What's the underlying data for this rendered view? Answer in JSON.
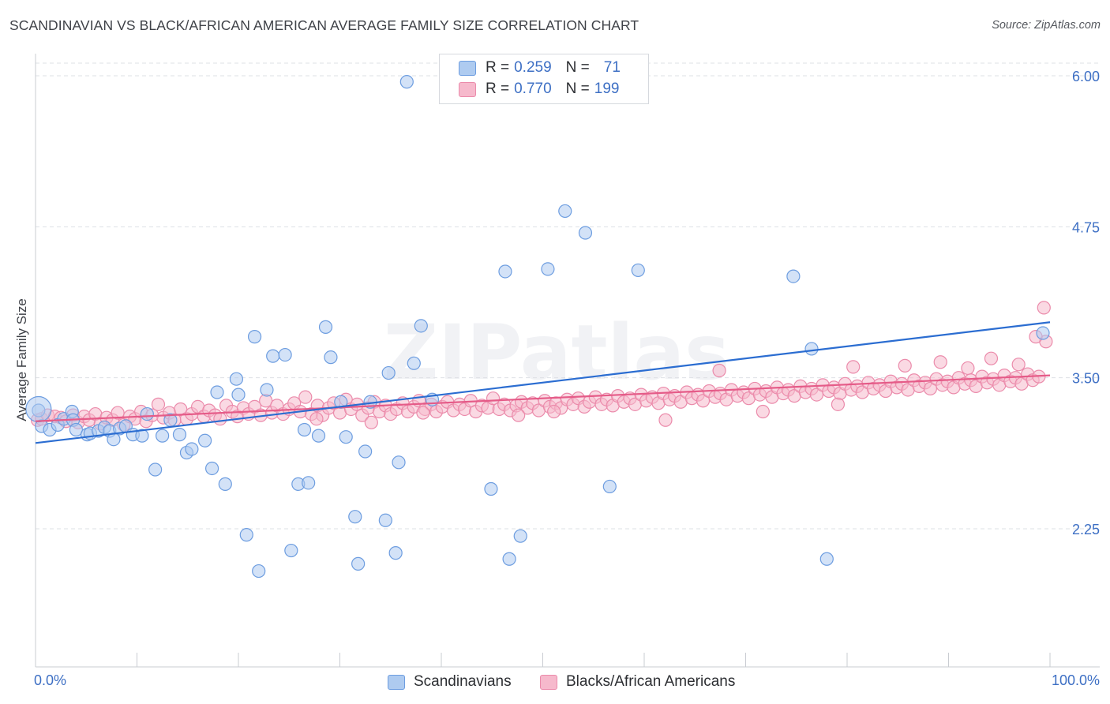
{
  "title": "SCANDINAVIAN VS BLACK/AFRICAN AMERICAN AVERAGE FAMILY SIZE CORRELATION CHART",
  "source": "Source: ZipAtlas.com",
  "watermark": "ZIPatlas",
  "legend": {
    "rows": [
      {
        "r_label": "R =",
        "r_value": "0.259",
        "n_label": "N =",
        "n_value": "71"
      },
      {
        "r_label": "R =",
        "r_value": "0.770",
        "n_label": "N =",
        "n_value": "199"
      }
    ]
  },
  "colors": {
    "blue_fill": "#aecbf0",
    "blue_stroke": "#6d9de0",
    "blue_line": "#2b6dd1",
    "pink_fill": "#f6b9cc",
    "pink_stroke": "#eb8bab",
    "pink_line": "#e55b88",
    "axis_text": "#3d6fc4",
    "grid": "#dde0e5"
  },
  "chart_data": {
    "type": "scatter",
    "title": "SCANDINAVIAN VS BLACK/AFRICAN AMERICAN AVERAGE FAMILY SIZE CORRELATION CHART",
    "xlabel": "",
    "ylabel": "Average Family Size",
    "xlim": [
      0,
      100
    ],
    "ylim": [
      1.0,
      6.1
    ],
    "x_tick_labels": [
      "0.0%",
      "100.0%"
    ],
    "y_ticks": [
      2.25,
      3.5,
      4.75,
      6.0
    ],
    "y_tick_labels": [
      "2.25",
      "3.50",
      "4.75",
      "6.00"
    ],
    "grid": true,
    "legend_position": "top-center",
    "series": [
      {
        "name": "Scandinavians",
        "r": 0.259,
        "n": 71,
        "trend": {
          "x0": 0,
          "y0": 2.96,
          "x1": 100,
          "y1": 3.96
        },
        "points": [
          [
            0.3,
            3.23
          ],
          [
            0.6,
            3.1
          ],
          [
            1.4,
            3.07
          ],
          [
            2.2,
            3.11
          ],
          [
            2.8,
            3.16
          ],
          [
            3.6,
            3.22
          ],
          [
            3.7,
            3.15
          ],
          [
            4,
            3.07
          ],
          [
            5.1,
            3.03
          ],
          [
            5.4,
            3.04
          ],
          [
            6.2,
            3.06
          ],
          [
            6.8,
            3.09
          ],
          [
            7.3,
            3.06
          ],
          [
            7.7,
            2.99
          ],
          [
            8.3,
            3.08
          ],
          [
            8.9,
            3.1
          ],
          [
            9.6,
            3.03
          ],
          [
            10.5,
            3.02
          ],
          [
            11,
            3.2
          ],
          [
            11.8,
            2.74
          ],
          [
            12.5,
            3.02
          ],
          [
            13.3,
            3.15
          ],
          [
            14.2,
            3.03
          ],
          [
            14.9,
            2.88
          ],
          [
            15.4,
            2.91
          ],
          [
            16.7,
            2.98
          ],
          [
            17.4,
            2.75
          ],
          [
            17.9,
            3.38
          ],
          [
            18.7,
            2.62
          ],
          [
            19.8,
            3.49
          ],
          [
            20,
            3.36
          ],
          [
            20.8,
            2.2
          ],
          [
            21.6,
            3.84
          ],
          [
            22,
            1.9
          ],
          [
            22.8,
            3.4
          ],
          [
            23.4,
            3.68
          ],
          [
            24.6,
            3.69
          ],
          [
            25.2,
            2.07
          ],
          [
            25.9,
            2.62
          ],
          [
            26.5,
            3.07
          ],
          [
            26.9,
            2.63
          ],
          [
            27.9,
            3.02
          ],
          [
            28.6,
            3.92
          ],
          [
            29.1,
            3.67
          ],
          [
            30.1,
            3.3
          ],
          [
            30.6,
            3.01
          ],
          [
            31.5,
            2.35
          ],
          [
            31.8,
            1.96
          ],
          [
            32.5,
            2.89
          ],
          [
            33,
            3.3
          ],
          [
            34.5,
            2.32
          ],
          [
            34.8,
            3.54
          ],
          [
            35.5,
            2.05
          ],
          [
            35.8,
            2.8
          ],
          [
            36.6,
            5.95
          ],
          [
            37.3,
            3.62
          ],
          [
            38,
            3.93
          ],
          [
            39.1,
            3.32
          ],
          [
            44.9,
            2.58
          ],
          [
            46.3,
            4.38
          ],
          [
            46.7,
            2.0
          ],
          [
            47.8,
            2.19
          ],
          [
            50.5,
            4.4
          ],
          [
            52.2,
            4.88
          ],
          [
            54.2,
            4.7
          ],
          [
            56.6,
            2.6
          ],
          [
            59.4,
            4.39
          ],
          [
            74.7,
            4.34
          ],
          [
            76.5,
            3.74
          ],
          [
            78,
            2.0
          ],
          [
            99.3,
            3.87
          ]
        ]
      },
      {
        "name": "Blacks/African Americans",
        "r": 0.77,
        "n": 199,
        "trend": {
          "x0": 0,
          "y0": 3.14,
          "x1": 100,
          "y1": 3.52
        },
        "points": [
          [
            0.2,
            3.15
          ],
          [
            0.6,
            3.16
          ],
          [
            1.2,
            3.19
          ],
          [
            1.9,
            3.18
          ],
          [
            2.5,
            3.17
          ],
          [
            3,
            3.14
          ],
          [
            3.7,
            3.19
          ],
          [
            4.2,
            3.13
          ],
          [
            4.8,
            3.18
          ],
          [
            5.3,
            3.15
          ],
          [
            5.9,
            3.2
          ],
          [
            6.4,
            3.12
          ],
          [
            7,
            3.17
          ],
          [
            7.6,
            3.15
          ],
          [
            8.1,
            3.21
          ],
          [
            8.7,
            3.11
          ],
          [
            9.3,
            3.18
          ],
          [
            9.8,
            3.16
          ],
          [
            10.4,
            3.22
          ],
          [
            10.9,
            3.14
          ],
          [
            11.5,
            3.19
          ],
          [
            12.1,
            3.28
          ],
          [
            12.6,
            3.17
          ],
          [
            13.2,
            3.21
          ],
          [
            13.7,
            3.15
          ],
          [
            14.3,
            3.24
          ],
          [
            14.9,
            3.16
          ],
          [
            15.4,
            3.2
          ],
          [
            16,
            3.26
          ],
          [
            16.6,
            3.18
          ],
          [
            17.1,
            3.23
          ],
          [
            17.7,
            3.19
          ],
          [
            18.2,
            3.16
          ],
          [
            18.8,
            3.27
          ],
          [
            19.4,
            3.22
          ],
          [
            19.9,
            3.18
          ],
          [
            20.5,
            3.25
          ],
          [
            21,
            3.2
          ],
          [
            21.6,
            3.26
          ],
          [
            22.2,
            3.19
          ],
          [
            22.7,
            3.31
          ],
          [
            23.3,
            3.21
          ],
          [
            23.8,
            3.27
          ],
          [
            24.4,
            3.2
          ],
          [
            25,
            3.24
          ],
          [
            25.5,
            3.29
          ],
          [
            26.1,
            3.22
          ],
          [
            26.6,
            3.34
          ],
          [
            27.2,
            3.2
          ],
          [
            27.8,
            3.27
          ],
          [
            28.3,
            3.19
          ],
          [
            28.9,
            3.25
          ],
          [
            29.4,
            3.29
          ],
          [
            30,
            3.21
          ],
          [
            30.6,
            3.32
          ],
          [
            31.1,
            3.24
          ],
          [
            31.7,
            3.28
          ],
          [
            32.2,
            3.19
          ],
          [
            32.8,
            3.25
          ],
          [
            33.4,
            3.3
          ],
          [
            33.9,
            3.22
          ],
          [
            34.5,
            3.27
          ],
          [
            35,
            3.2
          ],
          [
            35.6,
            3.24
          ],
          [
            36.2,
            3.29
          ],
          [
            36.7,
            3.22
          ],
          [
            37.3,
            3.26
          ],
          [
            37.8,
            3.31
          ],
          [
            38.4,
            3.24
          ],
          [
            39,
            3.28
          ],
          [
            39.5,
            3.22
          ],
          [
            40.1,
            3.26
          ],
          [
            40.6,
            3.3
          ],
          [
            41.2,
            3.23
          ],
          [
            41.8,
            3.28
          ],
          [
            42.3,
            3.24
          ],
          [
            42.9,
            3.31
          ],
          [
            43.4,
            3.22
          ],
          [
            44,
            3.27
          ],
          [
            44.6,
            3.25
          ],
          [
            45.1,
            3.33
          ],
          [
            45.7,
            3.24
          ],
          [
            46.2,
            3.28
          ],
          [
            46.8,
            3.23
          ],
          [
            47.4,
            3.27
          ],
          [
            47.9,
            3.3
          ],
          [
            48.5,
            3.25
          ],
          [
            49,
            3.29
          ],
          [
            49.6,
            3.23
          ],
          [
            50.2,
            3.31
          ],
          [
            50.7,
            3.26
          ],
          [
            51.3,
            3.29
          ],
          [
            51.8,
            3.25
          ],
          [
            52.4,
            3.32
          ],
          [
            53,
            3.28
          ],
          [
            53.5,
            3.33
          ],
          [
            54.1,
            3.26
          ],
          [
            54.6,
            3.3
          ],
          [
            55.2,
            3.34
          ],
          [
            55.8,
            3.28
          ],
          [
            56.3,
            3.32
          ],
          [
            56.9,
            3.27
          ],
          [
            57.4,
            3.35
          ],
          [
            58,
            3.3
          ],
          [
            58.6,
            3.33
          ],
          [
            59.1,
            3.28
          ],
          [
            59.7,
            3.36
          ],
          [
            60.2,
            3.31
          ],
          [
            60.8,
            3.34
          ],
          [
            61.4,
            3.29
          ],
          [
            61.9,
            3.37
          ],
          [
            62.5,
            3.32
          ],
          [
            63,
            3.35
          ],
          [
            63.6,
            3.3
          ],
          [
            64.2,
            3.38
          ],
          [
            64.7,
            3.33
          ],
          [
            65.3,
            3.36
          ],
          [
            65.8,
            3.31
          ],
          [
            66.4,
            3.39
          ],
          [
            67,
            3.34
          ],
          [
            67.5,
            3.37
          ],
          [
            68.1,
            3.32
          ],
          [
            68.6,
            3.4
          ],
          [
            69.2,
            3.35
          ],
          [
            69.8,
            3.38
          ],
          [
            70.3,
            3.33
          ],
          [
            70.9,
            3.41
          ],
          [
            71.4,
            3.36
          ],
          [
            72,
            3.39
          ],
          [
            72.6,
            3.34
          ],
          [
            73.1,
            3.42
          ],
          [
            73.7,
            3.37
          ],
          [
            74.2,
            3.4
          ],
          [
            74.8,
            3.35
          ],
          [
            75.4,
            3.43
          ],
          [
            75.9,
            3.38
          ],
          [
            76.5,
            3.41
          ],
          [
            77,
            3.36
          ],
          [
            77.6,
            3.44
          ],
          [
            78.2,
            3.39
          ],
          [
            78.7,
            3.42
          ],
          [
            79.3,
            3.37
          ],
          [
            79.8,
            3.45
          ],
          [
            80.4,
            3.4
          ],
          [
            81,
            3.43
          ],
          [
            81.5,
            3.38
          ],
          [
            82.1,
            3.46
          ],
          [
            82.6,
            3.41
          ],
          [
            83.2,
            3.44
          ],
          [
            83.8,
            3.39
          ],
          [
            84.3,
            3.47
          ],
          [
            84.9,
            3.42
          ],
          [
            85.4,
            3.45
          ],
          [
            86,
            3.4
          ],
          [
            86.6,
            3.48
          ],
          [
            87.1,
            3.43
          ],
          [
            87.7,
            3.46
          ],
          [
            88.2,
            3.41
          ],
          [
            88.8,
            3.49
          ],
          [
            89.4,
            3.44
          ],
          [
            89.9,
            3.47
          ],
          [
            90.5,
            3.42
          ],
          [
            91,
            3.5
          ],
          [
            91.6,
            3.45
          ],
          [
            92.2,
            3.48
          ],
          [
            92.7,
            3.43
          ],
          [
            93.3,
            3.51
          ],
          [
            93.8,
            3.46
          ],
          [
            94.4,
            3.49
          ],
          [
            95,
            3.44
          ],
          [
            95.5,
            3.52
          ],
          [
            96.1,
            3.47
          ],
          [
            96.6,
            3.5
          ],
          [
            97.2,
            3.45
          ],
          [
            97.8,
            3.53
          ],
          [
            98.3,
            3.48
          ],
          [
            98.9,
            3.51
          ],
          [
            99.4,
            4.08
          ],
          [
            99.6,
            3.8
          ],
          [
            62.1,
            3.15
          ],
          [
            67.4,
            3.56
          ],
          [
            80.6,
            3.59
          ],
          [
            85.7,
            3.6
          ],
          [
            89.2,
            3.63
          ],
          [
            91.9,
            3.58
          ],
          [
            94.2,
            3.66
          ],
          [
            96.9,
            3.61
          ],
          [
            98.6,
            3.84
          ],
          [
            47.6,
            3.19
          ],
          [
            33.1,
            3.13
          ],
          [
            27.7,
            3.16
          ],
          [
            51.1,
            3.22
          ],
          [
            38.2,
            3.21
          ],
          [
            71.7,
            3.22
          ],
          [
            79.1,
            3.28
          ]
        ]
      }
    ]
  },
  "bottom_legend": [
    "Scandinavians",
    "Blacks/African Americans"
  ]
}
